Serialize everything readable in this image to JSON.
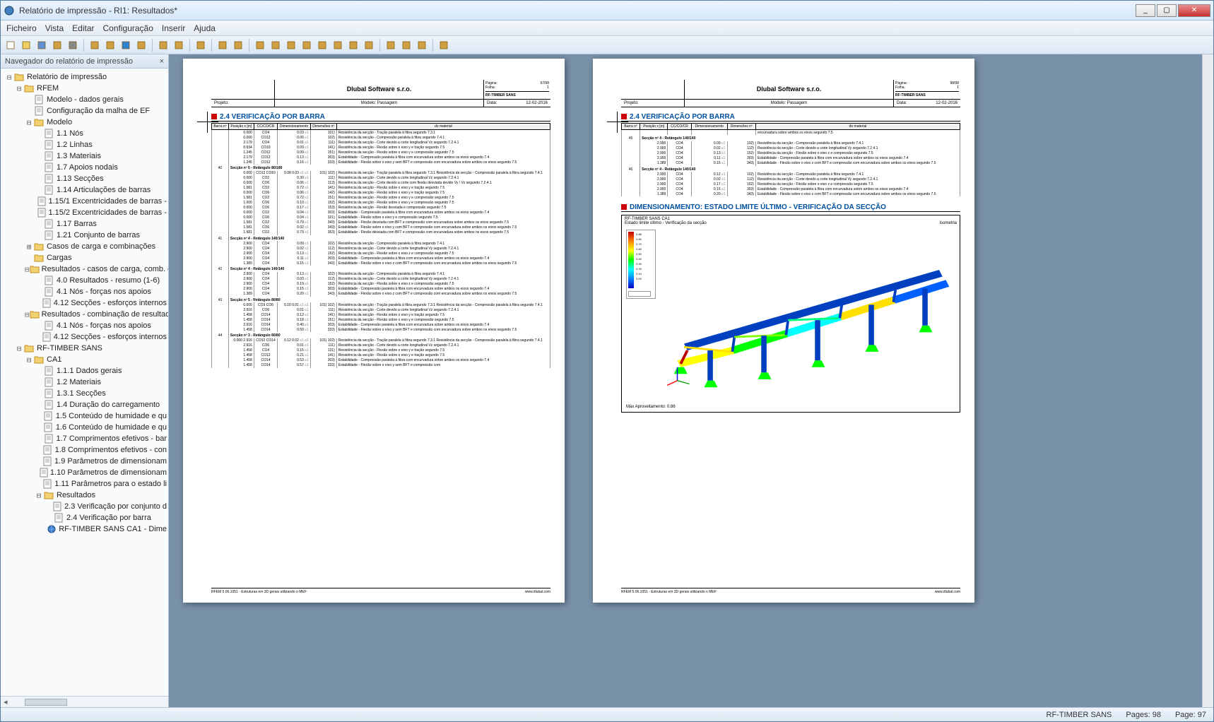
{
  "window": {
    "title": "Relatório de impressão - RI1: Resultados*"
  },
  "menu": [
    "Ficheiro",
    "Vista",
    "Editar",
    "Configuração",
    "Inserir",
    "Ajuda"
  ],
  "sidebar": {
    "header": "Navegador do relatório de impressão",
    "tree": [
      {
        "lvl": 0,
        "exp": "⊟",
        "icon": "folder",
        "label": "Relatório de impressão"
      },
      {
        "lvl": 1,
        "exp": "⊟",
        "icon": "folder",
        "label": "RFEM"
      },
      {
        "lvl": 2,
        "exp": "",
        "icon": "page",
        "label": "Modelo - dados gerais"
      },
      {
        "lvl": 2,
        "exp": "",
        "icon": "page",
        "label": "Configuração da malha de EF"
      },
      {
        "lvl": 2,
        "exp": "⊟",
        "icon": "folder",
        "label": "Modelo"
      },
      {
        "lvl": 3,
        "exp": "",
        "icon": "page",
        "label": "1.1 Nós"
      },
      {
        "lvl": 3,
        "exp": "",
        "icon": "page",
        "label": "1.2 Linhas"
      },
      {
        "lvl": 3,
        "exp": "",
        "icon": "page",
        "label": "1.3 Materiais"
      },
      {
        "lvl": 3,
        "exp": "",
        "icon": "page",
        "label": "1.7 Apoios nodais"
      },
      {
        "lvl": 3,
        "exp": "",
        "icon": "page",
        "label": "1.13 Secções"
      },
      {
        "lvl": 3,
        "exp": "",
        "icon": "page",
        "label": "1.14 Articulações de barras"
      },
      {
        "lvl": 3,
        "exp": "",
        "icon": "page",
        "label": "1.15/1 Excentricidades de barras -"
      },
      {
        "lvl": 3,
        "exp": "",
        "icon": "page",
        "label": "1.15/2 Excentricidades de barras -"
      },
      {
        "lvl": 3,
        "exp": "",
        "icon": "page",
        "label": "1.17 Barras"
      },
      {
        "lvl": 3,
        "exp": "",
        "icon": "page",
        "label": "1.21 Conjunto de barras"
      },
      {
        "lvl": 2,
        "exp": "⊞",
        "icon": "folder",
        "label": "Casos de carga e combinações"
      },
      {
        "lvl": 2,
        "exp": "",
        "icon": "folder",
        "label": "Cargas"
      },
      {
        "lvl": 2,
        "exp": "⊟",
        "icon": "folder",
        "label": "Resultados - casos de carga, comb. d"
      },
      {
        "lvl": 3,
        "exp": "",
        "icon": "page",
        "label": "4.0 Resultados - resumo (1-6)"
      },
      {
        "lvl": 3,
        "exp": "",
        "icon": "page",
        "label": "4.1 Nós - forças nos apoios"
      },
      {
        "lvl": 3,
        "exp": "",
        "icon": "page",
        "label": "4.12 Secções - esforços internos"
      },
      {
        "lvl": 2,
        "exp": "⊟",
        "icon": "folder",
        "label": "Resultados - combinação de resultad"
      },
      {
        "lvl": 3,
        "exp": "",
        "icon": "page",
        "label": "4.1 Nós - forças nos apoios"
      },
      {
        "lvl": 3,
        "exp": "",
        "icon": "page",
        "label": "4.12 Secções - esforços internos"
      },
      {
        "lvl": 1,
        "exp": "⊟",
        "icon": "folder",
        "label": "RF-TIMBER SANS"
      },
      {
        "lvl": 2,
        "exp": "⊟",
        "icon": "folder",
        "label": "CA1"
      },
      {
        "lvl": 3,
        "exp": "",
        "icon": "page",
        "label": "1.1.1 Dados gerais"
      },
      {
        "lvl": 3,
        "exp": "",
        "icon": "page",
        "label": "1.2 Materiais"
      },
      {
        "lvl": 3,
        "exp": "",
        "icon": "page",
        "label": "1.3.1 Secções"
      },
      {
        "lvl": 3,
        "exp": "",
        "icon": "page",
        "label": "1.4 Duração do carregamento"
      },
      {
        "lvl": 3,
        "exp": "",
        "icon": "page",
        "label": "1.5 Conteúdo de humidade e qu"
      },
      {
        "lvl": 3,
        "exp": "",
        "icon": "page",
        "label": "1.6 Conteúdo de humidade e qu"
      },
      {
        "lvl": 3,
        "exp": "",
        "icon": "page",
        "label": "1.7 Comprimentos efetivos - bar"
      },
      {
        "lvl": 3,
        "exp": "",
        "icon": "page",
        "label": "1.8 Comprimentos efetivos - con"
      },
      {
        "lvl": 3,
        "exp": "",
        "icon": "page",
        "label": "1.9 Parâmetros de dimensionam"
      },
      {
        "lvl": 3,
        "exp": "",
        "icon": "page",
        "label": "1.10 Parâmetros de dimensionam"
      },
      {
        "lvl": 3,
        "exp": "",
        "icon": "page",
        "label": "1.11  Parâmetros para o estado li"
      },
      {
        "lvl": 3,
        "exp": "⊟",
        "icon": "folder",
        "label": "Resultados"
      },
      {
        "lvl": 4,
        "exp": "",
        "icon": "page",
        "label": "2.3 Verificação por conjunto d"
      },
      {
        "lvl": 4,
        "exp": "",
        "icon": "page",
        "label": "2.4 Verificação por barra"
      },
      {
        "lvl": 4,
        "exp": "",
        "icon": "earth",
        "label": "RF-TIMBER SANS CA1 - Dime"
      }
    ]
  },
  "pages": {
    "company": "Dlubal Software s.r.o.",
    "module": "RF-TIMBER SANS",
    "modelo_label": "Modelo:",
    "modelo_value": "Passagem",
    "data_label": "Data:",
    "data_value": "12-02-2016",
    "projeto_label": "Projeto:",
    "section_title": "2.4 VERIFICAÇÃO POR BARRA",
    "section_title2": "DIMENSIONAMENTO: ESTADO LIMITE ÚLTIMO - VERIFICAÇÃO DA SECÇÃO",
    "page_left_num": "97/98",
    "page_right_num": "98/98",
    "pagina_label": "Página:",
    "folha_label": "Folha:",
    "folha_value": "1",
    "footer_left": "RFEM 5.06.1051 - Estruturas em 3D gerais utilizando o MEF",
    "footer_right": "www.dlubal.com",
    "table_headers": [
      "Barra nº",
      "Posição x [m]",
      "CC/CO/CR",
      "Dimensionamento",
      "Dimensões nº",
      "do material"
    ],
    "diagram_title": "RF-TIMBER SANS CA1",
    "diagram_subtitle": "Estado limite último - Verificação da secção",
    "isometry": "Isometria",
    "max_label": "Máx Aproveitamento: 0.86",
    "legend_values": [
      "0.86",
      "0.80",
      "0.70",
      "0.60",
      "0.50",
      "0.40",
      "0.30",
      "0.20",
      "0.10",
      "0.00"
    ],
    "rows_left": [
      {
        "group": "",
        "b": "",
        "x": "0.000",
        "co": "CO4",
        "d": "0.03",
        "lt": "≤1",
        "dn": "101)",
        "desc": "Resistência da secção - Tração paralela à fibra segundo 7.3.1"
      },
      {
        "group": "",
        "b": "",
        "x": "0.000",
        "co": "CO12",
        "d": "0.06",
        "lt": "≤1",
        "dn": "102)",
        "desc": "Resistência da secção - Compressão paralela à fibra segundo 7.4.1"
      },
      {
        "group": "",
        "b": "",
        "x": "2.179",
        "co": "CO4",
        "d": "0.01",
        "lt": "≤1",
        "dn": "111)",
        "desc": "Resistência da secção - Corte devido a corte longitudinal Vz segundo 7.2.4.1"
      },
      {
        "group": "",
        "b": "",
        "x": "0.934",
        "co": "CO10",
        "d": "0.09",
        "lt": "≤1",
        "dn": "141)",
        "desc": "Resistência da secção - Flexão sobre o eixo y e tração segundo 7.5"
      },
      {
        "group": "",
        "b": "",
        "x": "1.245",
        "co": "CO12",
        "d": "0.09",
        "lt": "≤1",
        "dn": "151)",
        "desc": "Resistência da secção - Flexão sobre o eixo y e compressão segundo 7.5"
      },
      {
        "group": "",
        "b": "",
        "x": "2.179",
        "co": "CO12",
        "d": "0.13",
        "lt": "≤1",
        "dn": "303)",
        "desc": "Estabilidade - Compressão paralela à fibra com encurvadura sobre ambos os eixos segundo 7.4"
      },
      {
        "group": "",
        "b": "",
        "x": "1.245",
        "co": "CO12",
        "d": "0.16",
        "lt": "≤1",
        "dn": "333)",
        "desc": "Estabilidade - Flexão sobre o eixo y sem BFT e compressão com encurvadura sobre ambos os eixos segundo 7.5"
      },
      {
        "group": "Secção nº 5 - Retângulo 80/180",
        "b": "40",
        "x": "0.000",
        "co": "CO12\nCO10",
        "d": "0.08\n0.03",
        "lt": "≤1\n≤1",
        "dn": "101)\n102)",
        "desc": "Resistência da secção - Tração paralela à fibra segundo 7.3.1\nResistência da secção - Compressão paralela à fibra segundo 7.4.1"
      },
      {
        "x": "0.000",
        "co": "CO2",
        "d": "0.30",
        "lt": "≤1",
        "dn": "111)",
        "desc": "Resistência da secção - Corte devido a corte longitudinal Vz segundo 7.2.4.1"
      },
      {
        "x": "0.000",
        "co": "CO6",
        "d": "0.06",
        "lt": "≤1",
        "dn": "113)",
        "desc": "Resistência da secção - Corte devido a corte com flexão desviada devido Vy / Vz segundo 7.2.4.1"
      },
      {
        "x": "1.581",
        "co": "CO2",
        "d": "0.72",
        "lt": "≤1",
        "dn": "141)",
        "desc": "Resistência da secção - Flexão sobre o eixo y e tração segundo 7.5"
      },
      {
        "x": "0.000",
        "co": "CO6",
        "d": "0.06",
        "lt": "≤1",
        "dn": "142)",
        "desc": "Resistência da secção - Flexão sobre o eixo y e tração segundo 7.5"
      },
      {
        "x": "1.581",
        "co": "CO2",
        "d": "0.72",
        "lt": "≤1",
        "dn": "151)",
        "desc": "Resistência da secção - Flexão sobre o eixo y e compressão segundo 7.5"
      },
      {
        "x": "1.000",
        "co": "CO6",
        "d": "0.10",
        "lt": "≤1",
        "dn": "152)",
        "desc": "Resistência da secção - Flexão sobre o eixo y e compressão segundo 7.5"
      },
      {
        "x": "0.000",
        "co": "CO6",
        "d": "0.17",
        "lt": "≤1",
        "dn": "153)",
        "desc": "Resistência da secção - Flexão desviada e compressão segundo 7.5"
      },
      {
        "x": "0.000",
        "co": "CO2",
        "d": "0.04",
        "lt": "≤1",
        "dn": "303)",
        "desc": "Estabilidade - Compressão paralela à fibra com encurvadura sobre ambos os eixos segundo 7.4"
      },
      {
        "x": "0.000",
        "co": "CO6",
        "d": "0.04",
        "lt": "≤1",
        "dn": "321)",
        "desc": "Estabilidade - Flexão sobre o eixo y e compressão segundo 7.5"
      },
      {
        "x": "1.581",
        "co": "CO2",
        "d": "0.79",
        "lt": "≤1",
        "dn": "343)",
        "desc": "Estabilidade - Flexão desviada com BFT e compressão com encurvadura sobre ambos os eixos segundo 7.5"
      },
      {
        "x": "1.581",
        "co": "CO6",
        "d": "0.02",
        "lt": "≤1",
        "dn": "343)",
        "desc": "Estabilidade - Flexão sobre o eixo y com BFT e compressão com encurvadura sobre ambos os eixos segundo 7.5"
      },
      {
        "x": "1.581",
        "co": "CO2",
        "d": "0.73",
        "lt": "≤1",
        "dn": "353)",
        "desc": "Estabilidade - Flexão desviada com BFT e compressão com encurvadura sobre ambos os eixos segundo 7.5"
      },
      {
        "group": "Secção nº 4 - Retângulo 140/140",
        "b": "41",
        "x": "2.900",
        "co": "CO4",
        "d": "0.09",
        "lt": "≤1",
        "dn": "102)",
        "desc": "Resistência da secção - Compressão paralela à fibra segundo 7.4.1"
      },
      {
        "x": "2.900",
        "co": "CO4",
        "d": "0.02",
        "lt": "≤1",
        "dn": "112)",
        "desc": "Resistência da secção - Corte devido a corte longitudinal Vy segundo 7.2.4.1"
      },
      {
        "x": "2.900",
        "co": "CO4",
        "d": "0.13",
        "lt": "≤1",
        "dn": "152)",
        "desc": "Resistência da secção - Flexão sobre o eixo z e compressão segundo 7.5"
      },
      {
        "x": "2.900",
        "co": "CO4",
        "d": "0.11",
        "lt": "≤1",
        "dn": "303)",
        "desc": "Estabilidade - Compressão paralela à fibra com encurvadura sobre ambos os eixos segundo 7.4"
      },
      {
        "x": "1.389",
        "co": "CO4",
        "d": "0.15",
        "lt": "≤1",
        "dn": "343)",
        "desc": "Estabilidade - Flexão sobre o eixo z com BFT e compressão com encurvadura sobre ambos os eixos segundo 7.5"
      },
      {
        "group": "Secção nº 4 - Retângulo 140/140",
        "b": "42",
        "x": "2.900",
        "co": "CO4",
        "d": "0.13",
        "lt": "≤1",
        "dn": "102)",
        "desc": "Resistência da secção - Compressão paralela à fibra segundo 7.4.1"
      },
      {
        "x": "2.900",
        "co": "CO4",
        "d": "0.03",
        "lt": "≤1",
        "dn": "112)",
        "desc": "Resistência da secção - Corte devido a corte longitudinal Vy segundo 7.2.4.1"
      },
      {
        "x": "2.900",
        "co": "CO4",
        "d": "0.19",
        "lt": "≤1",
        "dn": "152)",
        "desc": "Resistência da secção - Flexão sobre o eixo z e compressão segundo 7.5"
      },
      {
        "x": "2.900",
        "co": "CO4",
        "d": "0.15",
        "lt": "≤1",
        "dn": "303)",
        "desc": "Estabilidade - Compressão paralela à fibra com encurvadura sobre ambos os eixos segundo 7.4"
      },
      {
        "x": "1.389",
        "co": "CO4",
        "d": "0.20",
        "lt": "≤1",
        "dn": "343)",
        "desc": "Estabilidade - Flexão sobre o eixo z com BFT e compressão com encurvadura sobre ambos os eixos segundo 7.5"
      },
      {
        "group": "Secção nº 5 - Retângulo 80/80",
        "b": "43",
        "x": "0.000",
        "co": "CO3\nCO6",
        "d": "0.10\n0.01",
        "lt": "≤1\n≤1",
        "dn": "101)\n102)",
        "desc": "Resistência da secção - Tração paralela à fibra segundo 7.3.1\nResistência da secção - Compressão paralela à fibra segundo 7.4.1"
      },
      {
        "x": "2.916",
        "co": "CO6",
        "d": "0.01",
        "lt": "≤1",
        "dn": "111)",
        "desc": "Resistência da secção - Corte devido a corte longitudinal Vz segundo 7.2.4.1"
      },
      {
        "x": "1.458",
        "co": "CO14",
        "d": "0.12",
        "lt": "≤1",
        "dn": "141)",
        "desc": "Resistência da secção - Flexão sobre o eixo y e tração segundo 7.5"
      },
      {
        "x": "1.458",
        "co": "CO14",
        "d": "0.18",
        "lt": "≤1",
        "dn": "151)",
        "desc": "Resistência da secção - Flexão sobre o eixo y e compressão segundo 7.5"
      },
      {
        "x": "2.916",
        "co": "CO14",
        "d": "0.40",
        "lt": "≤1",
        "dn": "303)",
        "desc": "Estabilidade - Compressão paralela à fibra com encurvadura sobre ambos os eixos segundo 7.4"
      },
      {
        "x": "1.458",
        "co": "CO14",
        "d": "0.50",
        "lt": "≤1",
        "dn": "333)",
        "desc": "Estabilidade - Flexão sobre o eixo y sem BFT e compressão com encurvadura sobre ambos os eixos segundo 7.5"
      },
      {
        "group": "Secção nº 3 - Retângulo 80/80",
        "b": "44",
        "x": "0.000\n2.916",
        "co": "CO12\nCO14",
        "d": "0.12\n0.02",
        "lt": "≤1\n≤1",
        "dn": "101)\n102)",
        "desc": "Resistência da secção - Tração paralela à fibra segundo 7.3.1\nResistência da secção - Compressão paralela à fibra segundo 7.4.1"
      },
      {
        "x": "2.916",
        "co": "CO6",
        "d": "0.01",
        "lt": "≤1",
        "dn": "111)",
        "desc": "Resistência da secção - Corte devido a corte longitudinal Vz segundo 7.2.4.1"
      },
      {
        "x": "1.458",
        "co": "CO4",
        "d": "0.15",
        "lt": "≤1",
        "dn": "131)",
        "desc": "Resistência da secção - Flexão sobre o eixo y e tração segundo 7.5"
      },
      {
        "x": "1.458",
        "co": "CO12",
        "d": "0.21",
        "lt": "≤1",
        "dn": "141)",
        "desc": "Resistência da secção - Flexão sobre o eixo y e tração segundo 7.5"
      },
      {
        "x": "1.458",
        "co": "CO14",
        "d": "0.53",
        "lt": "≤1",
        "dn": "303)",
        "desc": "Estabilidade - Compressão paralela à fibra com encurvadura sobre ambos os eixos segundo 7.4"
      },
      {
        "x": "1.458",
        "co": "CO14",
        "d": "0.57",
        "lt": "≤1",
        "dn": "333)",
        "desc": "Estabilidade - Flexão sobre o eixo y sem BFT e compressão com"
      }
    ],
    "rows_right": [
      {
        "x": "",
        "co": "",
        "d": "",
        "lt": "",
        "dn": "",
        "desc": "encurvadura sobre ambos os eixos segundo 7.5"
      },
      {
        "group": "Secção nº 4 - Retângulo 140/140",
        "b": "45",
        "x": "2.900",
        "co": "CO4",
        "d": "0.09",
        "lt": "≤1",
        "dn": "102)",
        "desc": "Resistência da secção - Compressão paralela à fibra segundo 7.4.1"
      },
      {
        "x": "2.900",
        "co": "CO4",
        "d": "0.02",
        "lt": "≤1",
        "dn": "112)",
        "desc": "Resistência da secção - Corte devido a corte longitudinal Vy segundo 7.2.4.1"
      },
      {
        "x": "2.900",
        "co": "CO4",
        "d": "0.13",
        "lt": "≤1",
        "dn": "152)",
        "desc": "Resistência da secção - Flexão sobre o eixo z e compressão segundo 7.5"
      },
      {
        "x": "2.900",
        "co": "CO4",
        "d": "0.11",
        "lt": "≤1",
        "dn": "303)",
        "desc": "Estabilidade - Compressão paralela à fibra com encurvadura sobre ambos os eixos segundo 7.4"
      },
      {
        "x": "1.389",
        "co": "CO4",
        "d": "0.15",
        "lt": "≤1",
        "dn": "343)",
        "desc": "Estabilidade - Flexão sobre o eixo z com BFT e compressão com encurvadura sobre ambos os eixos segundo 7.5"
      },
      {
        "group": "Secção nº 4 - Retângulo 140/140",
        "b": "46",
        "x": "2.900",
        "co": "CO4",
        "d": "0.12",
        "lt": "≤1",
        "dn": "102)",
        "desc": "Resistência da secção - Compressão paralela à fibra segundo 7.4.1"
      },
      {
        "x": "2.900",
        "co": "CO4",
        "d": "0.02",
        "lt": "≤1",
        "dn": "112)",
        "desc": "Resistência da secção - Corte devido a corte longitudinal Vy segundo 7.2.4.1"
      },
      {
        "x": "2.900",
        "co": "CO4",
        "d": "0.17",
        "lt": "≤1",
        "dn": "152)",
        "desc": "Resistência da secção - Flexão sobre o eixo z e compressão segundo 7.5"
      },
      {
        "x": "2.900",
        "co": "CO4",
        "d": "0.15",
        "lt": "≤1",
        "dn": "303)",
        "desc": "Estabilidade - Compressão paralela à fibra com encurvadura sobre ambos os eixos segundo 7.4"
      },
      {
        "x": "1.389",
        "co": "CO4",
        "d": "0.20",
        "lt": "≤1",
        "dn": "343)",
        "desc": "Estabilidade - Flexão sobre o eixo z com BFT e compressão com encurvadura sobre ambos os eixos segundo 7.5"
      }
    ]
  },
  "statusbar": {
    "module": "RF-TIMBER SANS",
    "pages": "Pages: 98",
    "page": "Page: 97"
  },
  "toolbar_icons": [
    "new",
    "open",
    "save",
    "save-as",
    "print",
    "sep",
    "first",
    "prev",
    "play",
    "next",
    "sep",
    "rewind",
    "ff",
    "sep",
    "print2",
    "sep",
    "zoom-in",
    "zoom-out",
    "sep",
    "cursor",
    "select",
    "copy",
    "paste",
    "doc1",
    "doc2",
    "doc3",
    "doc4",
    "sep",
    "link1",
    "link2",
    "link3",
    "sep",
    "help"
  ],
  "colors": {
    "accent": "#0050a0",
    "red": "#c00000"
  }
}
